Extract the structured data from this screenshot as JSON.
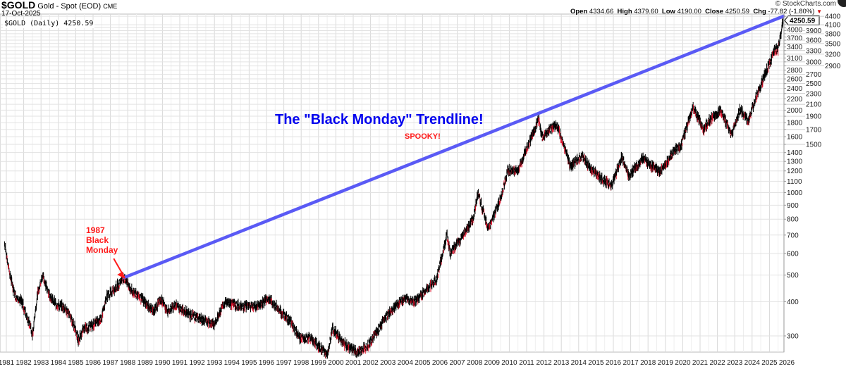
{
  "header": {
    "symbol": "$GOLD",
    "name": "Gold - Spot (EOD)",
    "exchange": "CME",
    "date": "17-Oct-2025",
    "legend": "$GOLD (Daily) 4250.59",
    "copyright": "© StockCharts.com",
    "open_label": "Open",
    "open": "4334.66",
    "high_label": "High",
    "high": "4379.60",
    "low_label": "Low",
    "low": "4190.00",
    "close_label": "Close",
    "close": "4250.59",
    "chg_label": "Chg",
    "chg": "-77.82 (-1.80%)"
  },
  "colors": {
    "price": "#000000",
    "down": "#e0102a",
    "trendline": "#5a5af5",
    "annotation_red": "#ff1a1a",
    "title_blue": "#0000ee",
    "grid": "#e4e4e4"
  },
  "chart_data": {
    "type": "line",
    "scale": "log",
    "title": "The \"Black Monday\" Trendline!",
    "subtitle": "SPOOKY!",
    "annotation": {
      "lines": [
        "1987",
        "Black",
        "Monday"
      ],
      "points_to": [
        1987.8,
        490
      ]
    },
    "trendline": {
      "from": [
        1987.8,
        490
      ],
      "to": [
        2025.8,
        4400
      ]
    },
    "last_value_label": "4250.59",
    "xlim": [
      1980.85,
      2027.0
    ],
    "ylim": [
      245,
      4450
    ],
    "x_ticks": [
      1981,
      1982,
      1983,
      1984,
      1985,
      1986,
      1987,
      1988,
      1989,
      1990,
      1991,
      1992,
      1993,
      1994,
      1995,
      1996,
      1997,
      1998,
      1999,
      2000,
      2001,
      2002,
      2003,
      2004,
      2005,
      2006,
      2007,
      2008,
      2009,
      2010,
      2011,
      2012,
      2013,
      2014,
      2015,
      2016,
      2017,
      2018,
      2019,
      2020,
      2021,
      2022,
      2023,
      2024,
      2025,
      2026
    ],
    "y_ticks": [
      300,
      400,
      500,
      600,
      700,
      800,
      900,
      1000,
      1100,
      1200,
      1300,
      1400,
      1500,
      1600,
      1700,
      1800,
      1900,
      2000,
      2100,
      2200,
      2300,
      2400,
      2500,
      2600,
      2700,
      2800,
      2900,
      3000,
      3100,
      3200,
      3300,
      3400,
      3500,
      3600,
      3700,
      3800,
      3900,
      4000,
      4100,
      4400
    ],
    "series": [
      {
        "name": "$GOLD (Daily)",
        "points": [
          [
            1980.9,
            650
          ],
          [
            1981.2,
            500
          ],
          [
            1981.5,
            420
          ],
          [
            1981.9,
            400
          ],
          [
            1982.4,
            320
          ],
          [
            1982.5,
            300
          ],
          [
            1982.8,
            430
          ],
          [
            1983.1,
            500
          ],
          [
            1983.5,
            420
          ],
          [
            1983.9,
            390
          ],
          [
            1984.4,
            380
          ],
          [
            1984.9,
            330
          ],
          [
            1985.15,
            290
          ],
          [
            1985.5,
            320
          ],
          [
            1985.9,
            325
          ],
          [
            1986.5,
            350
          ],
          [
            1986.8,
            420
          ],
          [
            1987.3,
            450
          ],
          [
            1987.8,
            490
          ],
          [
            1988.2,
            440
          ],
          [
            1988.8,
            410
          ],
          [
            1989.5,
            370
          ],
          [
            1989.9,
            410
          ],
          [
            1990.3,
            370
          ],
          [
            1990.8,
            390
          ],
          [
            1991.5,
            360
          ],
          [
            1992.5,
            340
          ],
          [
            1993.0,
            330
          ],
          [
            1993.6,
            400
          ],
          [
            1994.5,
            385
          ],
          [
            1995.5,
            385
          ],
          [
            1996.1,
            410
          ],
          [
            1996.8,
            370
          ],
          [
            1997.5,
            330
          ],
          [
            1997.9,
            295
          ],
          [
            1998.5,
            295
          ],
          [
            1999.5,
            255
          ],
          [
            1999.8,
            320
          ],
          [
            2000.5,
            280
          ],
          [
            2001.3,
            260
          ],
          [
            2001.9,
            280
          ],
          [
            2002.5,
            320
          ],
          [
            2003.0,
            360
          ],
          [
            2003.9,
            410
          ],
          [
            2004.5,
            400
          ],
          [
            2005.0,
            430
          ],
          [
            2005.8,
            480
          ],
          [
            2006.4,
            700
          ],
          [
            2006.6,
            600
          ],
          [
            2007.0,
            650
          ],
          [
            2007.9,
            800
          ],
          [
            2008.2,
            1000
          ],
          [
            2008.8,
            730
          ],
          [
            2009.5,
            950
          ],
          [
            2009.9,
            1200
          ],
          [
            2010.5,
            1200
          ],
          [
            2010.9,
            1400
          ],
          [
            2011.7,
            1850
          ],
          [
            2011.9,
            1600
          ],
          [
            2012.7,
            1780
          ],
          [
            2013.3,
            1400
          ],
          [
            2013.5,
            1250
          ],
          [
            2014.2,
            1350
          ],
          [
            2014.9,
            1180
          ],
          [
            2015.9,
            1060
          ],
          [
            2016.5,
            1350
          ],
          [
            2016.9,
            1150
          ],
          [
            2017.7,
            1330
          ],
          [
            2018.7,
            1190
          ],
          [
            2019.5,
            1420
          ],
          [
            2019.9,
            1480
          ],
          [
            2020.6,
            2050
          ],
          [
            2021.2,
            1700
          ],
          [
            2021.5,
            1820
          ],
          [
            2022.2,
            2000
          ],
          [
            2022.8,
            1630
          ],
          [
            2023.3,
            2000
          ],
          [
            2023.8,
            1830
          ],
          [
            2024.2,
            2200
          ],
          [
            2024.8,
            2750
          ],
          [
            2025.3,
            3300
          ],
          [
            2025.5,
            3350
          ],
          [
            2025.8,
            4250.59
          ]
        ]
      }
    ]
  }
}
